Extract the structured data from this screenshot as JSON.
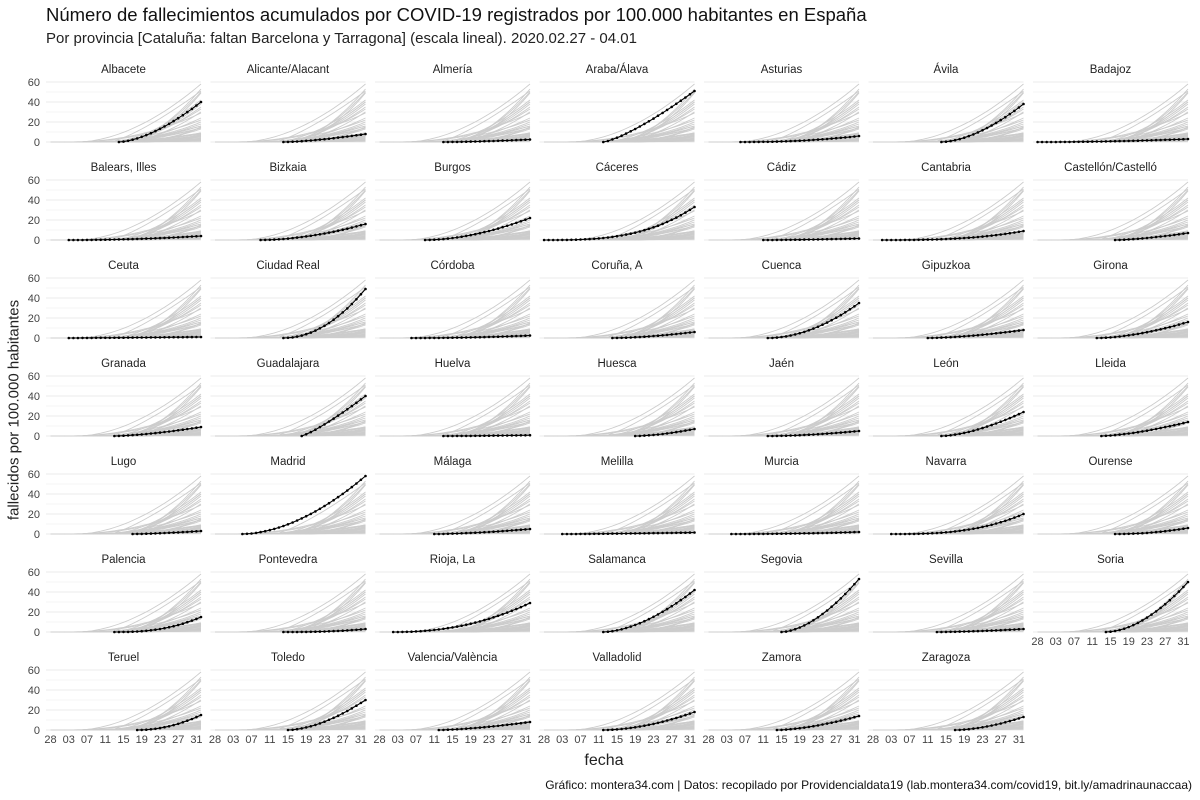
{
  "title": "Número de fallecimientos acumulados por COVID-19 registrados por 100.000 habitantes en España",
  "subtitle": "Por provincia  [Cataluña: faltan Barcelona y Tarragona] (escala lineal). 2020.02.27 - 04.01",
  "caption": "Gráfico: montera34.com | Datos: recopilado por Providencialdata19 (lab.montera34.com/covid19, bit.ly/amadrinaunaccaa)",
  "colors": {
    "highlight": "#000000",
    "background_lines": "#cccccc",
    "grid": "#ebebeb"
  },
  "chart_data": {
    "type": "line",
    "facet": "small-multiples",
    "xlabel": "fecha",
    "ylabel": "fallecidos por 100.000 habitantes",
    "x_range": [
      "2020-02-27",
      "2020-04-01"
    ],
    "x_ticks": [
      "28",
      "03",
      "07",
      "11",
      "15",
      "19",
      "23",
      "27",
      "31"
    ],
    "y_ticks": [
      0,
      20,
      40,
      60
    ],
    "ylim": [
      0,
      60
    ],
    "grid": true,
    "background_series": "all provinces in light grey on every panel",
    "panels": [
      {
        "name": "Albacete",
        "start": "2020-03-14",
        "end_value": 40,
        "shape": 1.6
      },
      {
        "name": "Alicante/Alacant",
        "start": "2020-03-14",
        "end_value": 8,
        "shape": 1.5
      },
      {
        "name": "Almería",
        "start": "2020-03-13",
        "end_value": 2.5,
        "shape": 1.6
      },
      {
        "name": "Araba/Álava",
        "start": "2020-03-12",
        "end_value": 51,
        "shape": 1.3
      },
      {
        "name": "Asturias",
        "start": "2020-03-06",
        "end_value": 6,
        "shape": 2.2
      },
      {
        "name": "Ávila",
        "start": "2020-03-14",
        "end_value": 38,
        "shape": 1.7
      },
      {
        "name": "Badajoz",
        "start": "2020-02-28",
        "end_value": 3,
        "shape": 2.0
      },
      {
        "name": "Balears, Illes",
        "start": "2020-03-03",
        "end_value": 4,
        "shape": 2.0
      },
      {
        "name": "Bizkaia",
        "start": "2020-03-09",
        "end_value": 16,
        "shape": 1.8
      },
      {
        "name": "Burgos",
        "start": "2020-03-09",
        "end_value": 22,
        "shape": 1.8
      },
      {
        "name": "Cáceres",
        "start": "2020-02-28",
        "end_value": 33,
        "shape": 3.0
      },
      {
        "name": "Cádiz",
        "start": "2020-03-11",
        "end_value": 1.5,
        "shape": 1.6
      },
      {
        "name": "Cantabria",
        "start": "2020-03-01",
        "end_value": 9,
        "shape": 2.8
      },
      {
        "name": "Castellón/Castelló",
        "start": "2020-03-16",
        "end_value": 7,
        "shape": 1.5
      },
      {
        "name": "Ceuta",
        "start": "2020-03-03",
        "end_value": 1,
        "shape": 1.2
      },
      {
        "name": "Ciudad Real",
        "start": "2020-03-14",
        "end_value": 49,
        "shape": 2.0
      },
      {
        "name": "Córdoba",
        "start": "2020-03-06",
        "end_value": 2.5,
        "shape": 2.0
      },
      {
        "name": "Coruña, A",
        "start": "2020-03-14",
        "end_value": 6,
        "shape": 1.6
      },
      {
        "name": "Cuenca",
        "start": "2020-03-12",
        "end_value": 35,
        "shape": 1.9
      },
      {
        "name": "Gipuzkoa",
        "start": "2020-03-11",
        "end_value": 8,
        "shape": 1.6
      },
      {
        "name": "Girona",
        "start": "2020-03-12",
        "end_value": 16,
        "shape": 1.7
      },
      {
        "name": "Granada",
        "start": "2020-03-13",
        "end_value": 9,
        "shape": 1.5
      },
      {
        "name": "Guadalajara",
        "start": "2020-03-18",
        "end_value": 40,
        "shape": 1.2
      },
      {
        "name": "Huelva",
        "start": "2020-03-13",
        "end_value": 0.8,
        "shape": 1.5
      },
      {
        "name": "Huesca",
        "start": "2020-03-19",
        "end_value": 7,
        "shape": 1.6
      },
      {
        "name": "Jaén",
        "start": "2020-03-12",
        "end_value": 5,
        "shape": 1.7
      },
      {
        "name": "León",
        "start": "2020-03-14",
        "end_value": 24,
        "shape": 1.6
      },
      {
        "name": "Lleida",
        "start": "2020-03-13",
        "end_value": 14,
        "shape": 1.5
      },
      {
        "name": "Lugo",
        "start": "2020-03-17",
        "end_value": 3,
        "shape": 1.5
      },
      {
        "name": "Madrid",
        "start": "2020-03-05",
        "end_value": 58,
        "shape": 1.8
      },
      {
        "name": "Málaga",
        "start": "2020-03-11",
        "end_value": 5,
        "shape": 1.6
      },
      {
        "name": "Melilla",
        "start": "2020-03-03",
        "end_value": 1.5,
        "shape": 1.5
      },
      {
        "name": "Murcia",
        "start": "2020-03-04",
        "end_value": 2,
        "shape": 2.0
      },
      {
        "name": "Navarra",
        "start": "2020-03-03",
        "end_value": 20,
        "shape": 2.8
      },
      {
        "name": "Ourense",
        "start": "2020-03-16",
        "end_value": 6,
        "shape": 2.0
      },
      {
        "name": "Palencia",
        "start": "2020-03-13",
        "end_value": 15,
        "shape": 2.5
      },
      {
        "name": "Pontevedra",
        "start": "2020-03-14",
        "end_value": 3,
        "shape": 2.5
      },
      {
        "name": "Rioja, La",
        "start": "2020-03-02",
        "end_value": 29,
        "shape": 2.2
      },
      {
        "name": "Salamanca",
        "start": "2020-03-12",
        "end_value": 42,
        "shape": 1.7
      },
      {
        "name": "Segovia",
        "start": "2020-03-15",
        "end_value": 53,
        "shape": 1.7
      },
      {
        "name": "Sevilla",
        "start": "2020-03-13",
        "end_value": 3,
        "shape": 1.6
      },
      {
        "name": "Soria",
        "start": "2020-03-14",
        "end_value": 50,
        "shape": 1.8
      },
      {
        "name": "Teruel",
        "start": "2020-03-18",
        "end_value": 15,
        "shape": 2.0
      },
      {
        "name": "Toledo",
        "start": "2020-03-15",
        "end_value": 30,
        "shape": 1.7
      },
      {
        "name": "Valencia/València",
        "start": "2020-03-12",
        "end_value": 8,
        "shape": 1.5
      },
      {
        "name": "Valladolid",
        "start": "2020-03-12",
        "end_value": 18,
        "shape": 1.8
      },
      {
        "name": "Zamora",
        "start": "2020-03-14",
        "end_value": 14,
        "shape": 1.6
      },
      {
        "name": "Zaragoza",
        "start": "2020-03-17",
        "end_value": 13,
        "shape": 1.7
      }
    ]
  }
}
